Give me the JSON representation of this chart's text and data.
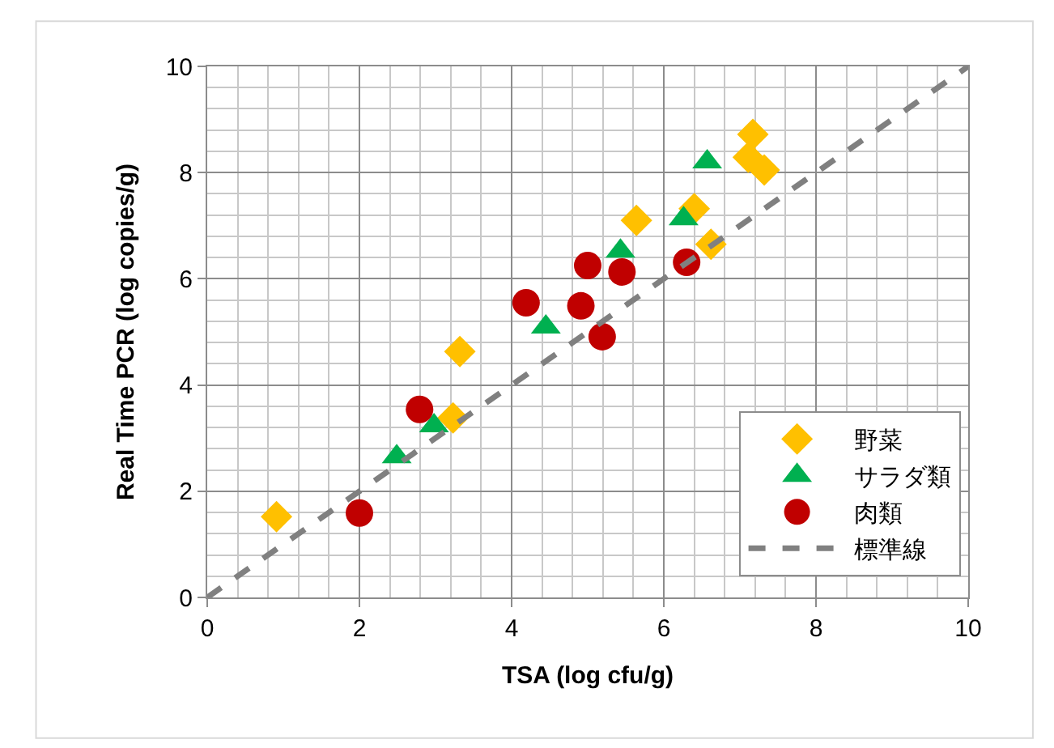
{
  "chart_data": {
    "type": "scatter",
    "xlabel": "TSA (log cfu/g)",
    "ylabel": "Real Time PCR (log copies/g)",
    "xlim": [
      0,
      10
    ],
    "ylim": [
      0,
      10
    ],
    "xticks": [
      0,
      2,
      4,
      6,
      8,
      10
    ],
    "yticks": [
      0,
      2,
      4,
      6,
      8,
      10
    ],
    "grid": true,
    "legend": "bottom right",
    "series": [
      {
        "name": "野菜",
        "color": "#ffc000",
        "marker": "diamond",
        "x": [
          0.91,
          3.23,
          3.32,
          5.64,
          6.4,
          6.62,
          7.17,
          7.11,
          7.32
        ],
        "values": [
          1.52,
          3.38,
          4.63,
          7.1,
          7.32,
          6.65,
          8.72,
          8.29,
          8.05
        ]
      },
      {
        "name": "サラダ類",
        "color": "#00b050",
        "marker": "triangle",
        "x": [
          2.49,
          2.98,
          4.45,
          5.43,
          6.26,
          6.57
        ],
        "values": [
          2.65,
          3.23,
          5.09,
          6.52,
          7.13,
          8.2
        ]
      },
      {
        "name": "肉類",
        "color": "#c00000",
        "marker": "circle",
        "x": [
          2.0,
          2.79,
          4.19,
          4.91,
          5.0,
          5.19,
          5.45,
          6.3
        ],
        "values": [
          1.59,
          3.54,
          5.55,
          5.49,
          6.25,
          4.91,
          6.13,
          6.31
        ]
      },
      {
        "name": "標準線",
        "type": "line",
        "color": "#808080",
        "line_style": "dashed",
        "marker": "none",
        "x": [
          0,
          10
        ],
        "values": [
          0,
          10
        ]
      }
    ]
  }
}
